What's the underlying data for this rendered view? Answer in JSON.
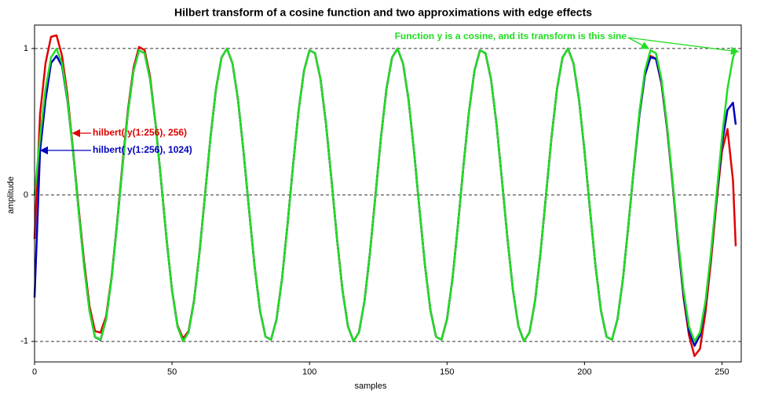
{
  "chart_data": {
    "type": "line",
    "title": "Hilbert transform of a cosine function and two approximations with edge effects",
    "xlabel": "samples",
    "ylabel": "amplitude",
    "x": [
      0,
      2,
      4,
      6,
      8,
      10,
      12,
      14,
      16,
      18,
      20,
      22,
      24,
      26,
      28,
      30,
      32,
      34,
      36,
      38,
      40,
      42,
      44,
      46,
      48,
      50,
      52,
      54,
      56,
      58,
      60,
      62,
      64,
      66,
      68,
      70,
      72,
      74,
      76,
      78,
      80,
      82,
      84,
      86,
      88,
      90,
      92,
      94,
      96,
      98,
      100,
      102,
      104,
      106,
      108,
      110,
      112,
      114,
      116,
      118,
      120,
      122,
      124,
      126,
      128,
      130,
      132,
      134,
      136,
      138,
      140,
      142,
      144,
      146,
      148,
      150,
      152,
      154,
      156,
      158,
      160,
      162,
      164,
      166,
      168,
      170,
      172,
      174,
      176,
      178,
      180,
      182,
      184,
      186,
      188,
      190,
      192,
      194,
      196,
      198,
      200,
      202,
      204,
      206,
      208,
      210,
      212,
      214,
      216,
      218,
      220,
      222,
      224,
      226,
      228,
      230,
      232,
      234,
      236,
      238,
      240,
      242,
      244,
      246,
      248,
      250,
      252,
      254,
      255
    ],
    "series": [
      {
        "name": "hilbert( y(1:256), 256)",
        "color": "#e00000",
        "values": [
          -0.3,
          0.55,
          0.9,
          1.08,
          1.09,
          0.95,
          0.68,
          0.31,
          -0.08,
          -0.45,
          -0.76,
          -0.93,
          -0.94,
          -0.83,
          -0.56,
          -0.19,
          0.22,
          0.59,
          0.87,
          1.01,
          0.99,
          0.81,
          0.49,
          0.1,
          -0.3,
          -0.65,
          -0.89,
          -0.98,
          -0.93,
          -0.72,
          -0.39,
          0,
          0.394,
          0.725,
          0.938,
          0.999,
          0.898,
          0.651,
          0.299,
          -0.101,
          -0.485,
          -0.791,
          -0.968,
          -0.988,
          -0.849,
          -0.571,
          -0.201,
          0.201,
          0.571,
          0.849,
          0.988,
          0.968,
          0.791,
          0.485,
          0.101,
          -0.299,
          -0.651,
          -0.898,
          -0.999,
          -0.938,
          -0.725,
          -0.394,
          0,
          0.394,
          0.725,
          0.938,
          0.999,
          0.898,
          0.651,
          0.299,
          -0.101,
          -0.485,
          -0.791,
          -0.968,
          -0.988,
          -0.849,
          -0.571,
          -0.201,
          0.201,
          0.571,
          0.849,
          0.988,
          0.968,
          0.791,
          0.485,
          0.101,
          -0.299,
          -0.651,
          -0.898,
          -0.999,
          -0.938,
          -0.725,
          -0.394,
          0,
          0.394,
          0.725,
          0.938,
          0.999,
          0.898,
          0.651,
          0.299,
          -0.101,
          -0.485,
          -0.791,
          -0.968,
          -0.988,
          -0.849,
          -0.571,
          -0.201,
          0.19,
          0.55,
          0.82,
          0.95,
          0.93,
          0.76,
          0.46,
          0.08,
          -0.33,
          -0.7,
          -0.96,
          -1.1,
          -1.05,
          -0.8,
          -0.45,
          -0.05,
          0.3,
          0.45,
          0.1,
          -0.35
        ]
      },
      {
        "name": "hilbert( y(1:256), 1024)",
        "color": "#0000c0",
        "values": [
          -0.7,
          0.3,
          0.65,
          0.9,
          0.95,
          0.88,
          0.64,
          0.3,
          -0.1,
          -0.48,
          -0.79,
          -0.97,
          -0.99,
          -0.85,
          -0.57,
          -0.2,
          0.201,
          0.571,
          0.849,
          0.988,
          0.968,
          0.791,
          0.485,
          0.101,
          -0.299,
          -0.651,
          -0.898,
          -0.999,
          -0.938,
          -0.725,
          -0.394,
          0,
          0.394,
          0.725,
          0.938,
          0.999,
          0.898,
          0.651,
          0.299,
          -0.101,
          -0.485,
          -0.791,
          -0.968,
          -0.988,
          -0.849,
          -0.571,
          -0.201,
          0.201,
          0.571,
          0.849,
          0.988,
          0.968,
          0.791,
          0.485,
          0.101,
          -0.299,
          -0.651,
          -0.898,
          -0.999,
          -0.938,
          -0.725,
          -0.394,
          0,
          0.394,
          0.725,
          0.938,
          0.999,
          0.898,
          0.651,
          0.299,
          -0.101,
          -0.485,
          -0.791,
          -0.968,
          -0.988,
          -0.849,
          -0.571,
          -0.201,
          0.201,
          0.571,
          0.849,
          0.988,
          0.968,
          0.791,
          0.485,
          0.101,
          -0.299,
          -0.651,
          -0.898,
          -0.999,
          -0.938,
          -0.725,
          -0.394,
          0,
          0.394,
          0.725,
          0.938,
          0.999,
          0.898,
          0.651,
          0.299,
          -0.101,
          -0.485,
          -0.791,
          -0.968,
          -0.988,
          -0.849,
          -0.571,
          -0.201,
          0.19,
          0.55,
          0.82,
          0.94,
          0.93,
          0.77,
          0.47,
          0.09,
          -0.32,
          -0.68,
          -0.93,
          -1.03,
          -0.96,
          -0.74,
          -0.4,
          -0.02,
          0.35,
          0.58,
          0.63,
          0.48
        ]
      },
      {
        "name": "Function y is a cosine, and its transform is this sine",
        "color": "#22dd22",
        "values": [
          0,
          0.394,
          0.725,
          0.938,
          0.999,
          0.898,
          0.651,
          0.299,
          -0.101,
          -0.485,
          -0.791,
          -0.968,
          -0.988,
          -0.849,
          -0.571,
          -0.201,
          0.201,
          0.571,
          0.849,
          0.988,
          0.968,
          0.791,
          0.485,
          0.101,
          -0.299,
          -0.651,
          -0.898,
          -0.999,
          -0.938,
          -0.725,
          -0.394,
          0,
          0.394,
          0.725,
          0.938,
          0.999,
          0.898,
          0.651,
          0.299,
          -0.101,
          -0.485,
          -0.791,
          -0.968,
          -0.988,
          -0.849,
          -0.571,
          -0.201,
          0.201,
          0.571,
          0.849,
          0.988,
          0.968,
          0.791,
          0.485,
          0.101,
          -0.299,
          -0.651,
          -0.898,
          -0.999,
          -0.938,
          -0.725,
          -0.394,
          0,
          0.394,
          0.725,
          0.938,
          0.999,
          0.898,
          0.651,
          0.299,
          -0.101,
          -0.485,
          -0.791,
          -0.968,
          -0.988,
          -0.849,
          -0.571,
          -0.201,
          0.201,
          0.571,
          0.849,
          0.988,
          0.968,
          0.791,
          0.485,
          0.101,
          -0.299,
          -0.651,
          -0.898,
          -0.999,
          -0.938,
          -0.725,
          -0.394,
          0,
          0.394,
          0.725,
          0.938,
          0.999,
          0.898,
          0.651,
          0.299,
          -0.101,
          -0.485,
          -0.791,
          -0.968,
          -0.988,
          -0.849,
          -0.571,
          -0.201,
          0.201,
          0.571,
          0.849,
          0.988,
          0.968,
          0.791,
          0.485,
          0.101,
          -0.299,
          -0.651,
          -0.898,
          -0.999,
          -0.938,
          -0.725,
          -0.394,
          0,
          0.394,
          0.725,
          0.938,
          0.988
        ]
      }
    ],
    "xlim": [
      0,
      257
    ],
    "xticks": [
      0,
      50,
      100,
      150,
      200,
      250
    ],
    "ylim": [
      -1.14,
      1.16
    ],
    "yticks": [
      -1,
      0,
      1
    ],
    "grid": true
  }
}
